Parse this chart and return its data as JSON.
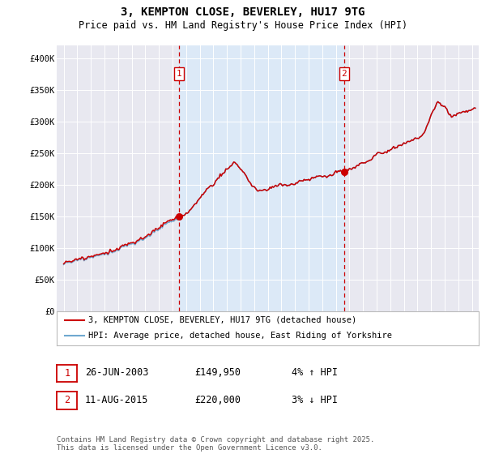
{
  "title": "3, KEMPTON CLOSE, BEVERLEY, HU17 9TG",
  "subtitle": "Price paid vs. HM Land Registry's House Price Index (HPI)",
  "background_color": "#ffffff",
  "plot_bg_color": "#e8e8f0",
  "grid_color": "#ffffff",
  "shade_color": "#dce9f7",
  "hpi_line_color": "#6fa8d0",
  "price_line_color": "#cc0000",
  "vline_color": "#cc0000",
  "sale1_date_x": 2003.48,
  "sale1_price": 149950,
  "sale2_date_x": 2015.61,
  "sale2_price": 220000,
  "sale1_label": "1",
  "sale2_label": "2",
  "legend_house": "3, KEMPTON CLOSE, BEVERLEY, HU17 9TG (detached house)",
  "legend_hpi": "HPI: Average price, detached house, East Riding of Yorkshire",
  "table_row1": [
    "1",
    "26-JUN-2003",
    "£149,950",
    "4% ↑ HPI"
  ],
  "table_row2": [
    "2",
    "11-AUG-2015",
    "£220,000",
    "3% ↓ HPI"
  ],
  "footnote": "Contains HM Land Registry data © Crown copyright and database right 2025.\nThis data is licensed under the Open Government Licence v3.0.",
  "xlim": [
    1994.5,
    2025.5
  ],
  "ylim": [
    0,
    420000
  ],
  "yticks": [
    0,
    50000,
    100000,
    150000,
    200000,
    250000,
    300000,
    350000,
    400000
  ],
  "ytick_labels": [
    "£0",
    "£50K",
    "£100K",
    "£150K",
    "£200K",
    "£250K",
    "£300K",
    "£350K",
    "£400K"
  ],
  "xticks": [
    1995,
    1996,
    1997,
    1998,
    1999,
    2000,
    2001,
    2002,
    2003,
    2004,
    2005,
    2006,
    2007,
    2008,
    2009,
    2010,
    2011,
    2012,
    2013,
    2014,
    2015,
    2016,
    2017,
    2018,
    2019,
    2020,
    2021,
    2022,
    2023,
    2024,
    2025
  ]
}
